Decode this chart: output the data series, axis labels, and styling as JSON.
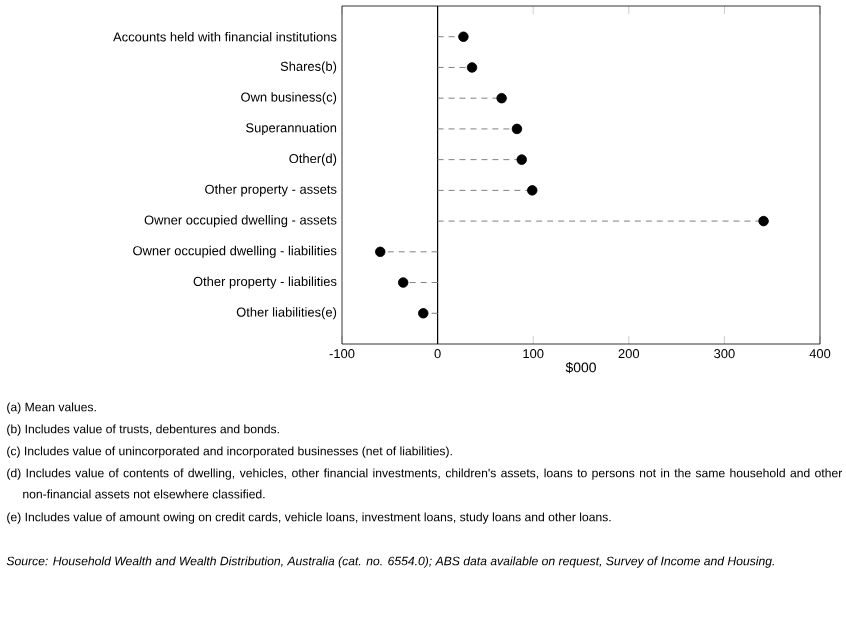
{
  "chart_data": {
    "type": "lollipop",
    "orientation": "horizontal",
    "xlabel": "$000",
    "categories": [
      "Accounts held with financial institutions",
      "Shares(b)",
      "Own business(c)",
      "Superannuation",
      "Other(d)",
      "Other property - assets",
      "Owner occupied dwelling - assets",
      "Owner occupied dwelling - liabilities",
      "Other property - liabilities",
      "Other liabilities(e)"
    ],
    "values": [
      27,
      36,
      67,
      83,
      88,
      99,
      341,
      -60,
      -36,
      -15
    ],
    "color": "#000000",
    "marker": "circle",
    "line_style": "dashed",
    "xlim": [
      -100,
      400
    ],
    "xticks": [
      -100,
      0,
      100,
      200,
      300,
      400
    ],
    "ref_lines": [
      {
        "axis": "x",
        "value": 0,
        "color": "#000000"
      }
    ],
    "annotations": [
      "(a) Mean values.",
      "(b) Includes value of trusts, debentures and bonds.",
      "(c) Includes value of unincorporated and incorporated businesses (net of liabilities).",
      "(d) Includes value of contents of dwelling, vehicles, other financial investments, children's assets, loans to persons not in the same household and other non-financial assets not elsewhere classified.",
      "(e) Includes value of amount owing on credit cards, vehicle loans, investment loans, study loans and other loans.",
      "*Source: Household Wealth and Wealth Distribution, Australia (cat. no. 6554.0); ABS data available on request, Survey of Income and Housing.*"
    ]
  }
}
